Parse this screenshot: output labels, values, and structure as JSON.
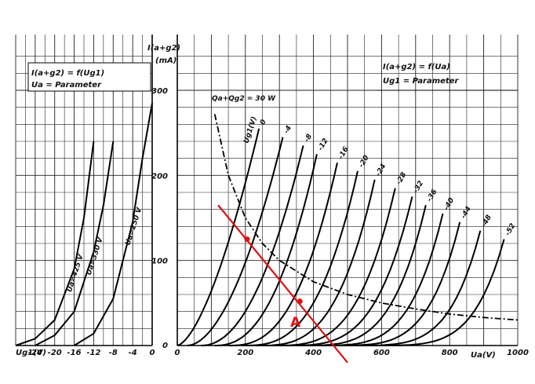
{
  "chart_data": [
    {
      "type": "line",
      "panel": "transfer characteristics",
      "formula_line1": "I(a+g2) = f(Ug1)",
      "formula_line2": "Ua = Parameter",
      "xlabel": "Ug1(V)",
      "xlim": [
        -28,
        0
      ],
      "x_ticks": [
        "-24",
        "-20",
        "-16",
        "-12",
        "-8",
        "-4",
        "0"
      ],
      "series": [
        {
          "name": "Ua=425 V",
          "x": [
            -28,
            -24,
            -20,
            -16,
            -14,
            -12
          ],
          "y": [
            0,
            8,
            30,
            90,
            150,
            240
          ]
        },
        {
          "name": "Ua=330 V",
          "x": [
            -24,
            -20,
            -16,
            -12,
            -10,
            -8
          ],
          "y": [
            0,
            12,
            40,
            110,
            165,
            240
          ]
        },
        {
          "name": "Ua=250 V",
          "x": [
            -16,
            -12,
            -8,
            -4,
            -2,
            0
          ],
          "y": [
            0,
            14,
            55,
            145,
            220,
            285
          ]
        }
      ]
    },
    {
      "type": "line",
      "panel": "output characteristics",
      "formula_line1": "I(a+g2) = f(Ua)",
      "formula_line2": "Ug1 = Parameter",
      "ylabel_line1": "I(a+g2)",
      "ylabel_line2": "(mA)",
      "xlabel": "Ua(V)",
      "xlim": [
        0,
        1000
      ],
      "ylim": [
        0,
        300
      ],
      "x_ticks": [
        "200",
        "400",
        "600",
        "800",
        "1000"
      ],
      "y_ticks": [
        "100",
        "200",
        "300"
      ],
      "grid": true,
      "param_label": "Ug1(V)",
      "series": [
        {
          "name": "0",
          "x0": 0,
          "x1": 240
        },
        {
          "name": "-4",
          "x0": 30,
          "x1": 310
        },
        {
          "name": "-8",
          "x0": 70,
          "x1": 370
        },
        {
          "name": "-12",
          "x0": 110,
          "x1": 410
        },
        {
          "name": "-16",
          "x0": 150,
          "x1": 470
        },
        {
          "name": "-20",
          "x0": 190,
          "x1": 530
        },
        {
          "name": "-24",
          "x0": 230,
          "x1": 580
        },
        {
          "name": "-28",
          "x0": 270,
          "x1": 640
        },
        {
          "name": "-32",
          "x0": 300,
          "x1": 690
        },
        {
          "name": "-36",
          "x0": 340,
          "x1": 730
        },
        {
          "name": "-40",
          "x0": 380,
          "x1": 780
        },
        {
          "name": "-44",
          "x0": 420,
          "x1": 830
        },
        {
          "name": "-48",
          "x0": 470,
          "x1": 890
        },
        {
          "name": "-52",
          "x0": 520,
          "x1": 960
        }
      ],
      "dissipation_curve": {
        "label": "Qa+Qg2 = 30 W",
        "x": [
          110,
          150,
          200,
          250,
          300,
          400,
          500,
          600,
          700,
          800,
          900,
          1000
        ],
        "y": [
          272,
          200,
          150,
          120,
          100,
          75,
          60,
          50,
          43,
          37,
          33,
          30
        ]
      },
      "load_line": {
        "x": [
          120,
          500
        ],
        "y": [
          165,
          -20
        ],
        "points": [
          {
            "x": 205,
            "y": 125
          },
          {
            "x": 360,
            "y": 52
          }
        ]
      },
      "annotation": "A"
    }
  ]
}
